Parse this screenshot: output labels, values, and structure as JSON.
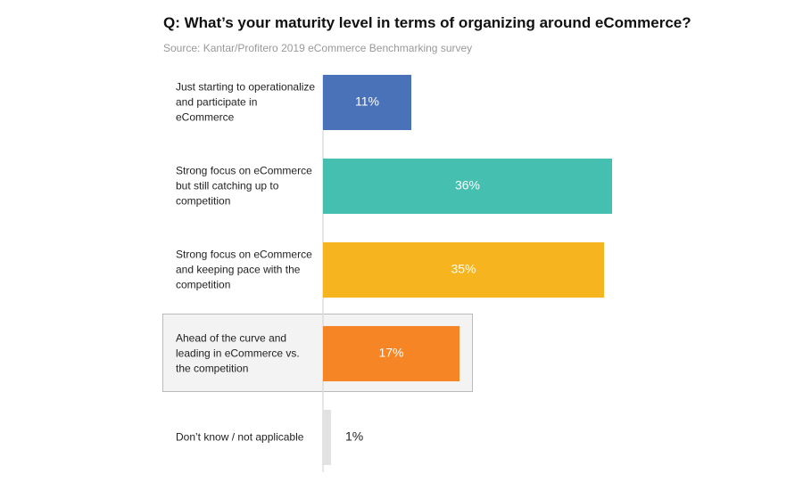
{
  "chart_data": {
    "type": "barh",
    "title": "Q: What’s your maturity level in terms of organizing around eCommerce?",
    "subtitle": "Source: Kantar/Profitero 2019 eCommerce Benchmarking survey",
    "categories": [
      "Just starting to operationalize\nand participate in eCommerce",
      "Strong focus on eCommerce\nbut still catching up to\ncompetition",
      "Strong focus on eCommerce\nand keeping pace with the\ncompetition",
      "Ahead of the curve and\nleading in eCommerce vs.\nthe competition",
      "Don’t know / not applicable"
    ],
    "values": [
      11,
      36,
      35,
      17,
      1
    ],
    "value_labels": [
      "11%",
      "36%",
      "35%",
      "17%",
      "1%"
    ],
    "colors": [
      "#4a72b8",
      "#45bfb0",
      "#f6b41e",
      "#f58525",
      "#e2e2e2"
    ],
    "xlim": [
      0,
      40
    ]
  }
}
